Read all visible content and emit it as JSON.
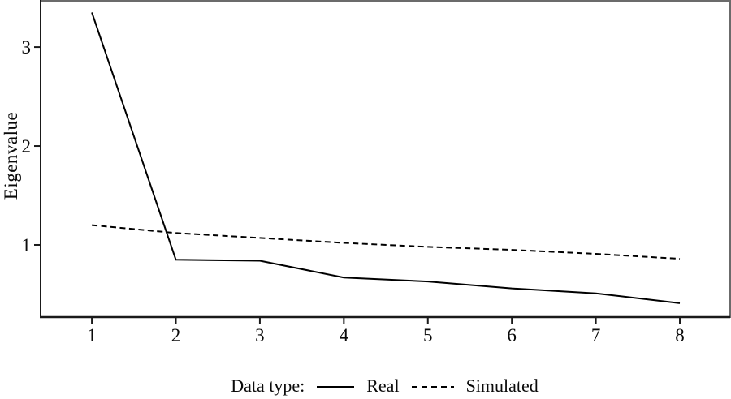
{
  "chart_data": {
    "type": "line",
    "title": "",
    "xlabel": "",
    "ylabel": "Eigenvalue",
    "x": [
      1,
      2,
      3,
      4,
      5,
      6,
      7,
      8
    ],
    "x_ticks": [
      "1",
      "2",
      "3",
      "4",
      "5",
      "6",
      "7",
      "8"
    ],
    "x_tick_values": [
      1,
      2,
      3,
      4,
      5,
      6,
      7,
      8
    ],
    "y_ticks": [
      "1",
      "2",
      "3"
    ],
    "y_tick_values": [
      1,
      2,
      3
    ],
    "xlim": [
      0.39,
      8.58
    ],
    "ylim": [
      0.27,
      3.46
    ],
    "grid": false,
    "series": [
      {
        "name": "Real",
        "style": "solid",
        "values": [
          3.35,
          0.85,
          0.84,
          0.67,
          0.63,
          0.56,
          0.51,
          0.41
        ]
      },
      {
        "name": "Simulated",
        "style": "dashed",
        "values": [
          1.2,
          1.12,
          1.07,
          1.02,
          0.98,
          0.95,
          0.91,
          0.86
        ]
      }
    ],
    "legend": {
      "prefix": "Data type:",
      "entries": [
        "Real",
        "Simulated"
      ],
      "position": "bottom-center"
    }
  },
  "colors": {
    "line": "#000000",
    "text": "#0a0a0a",
    "axis": "#1a1a1a",
    "frame_gray": "#6b6b6b",
    "background": "#ffffff"
  }
}
